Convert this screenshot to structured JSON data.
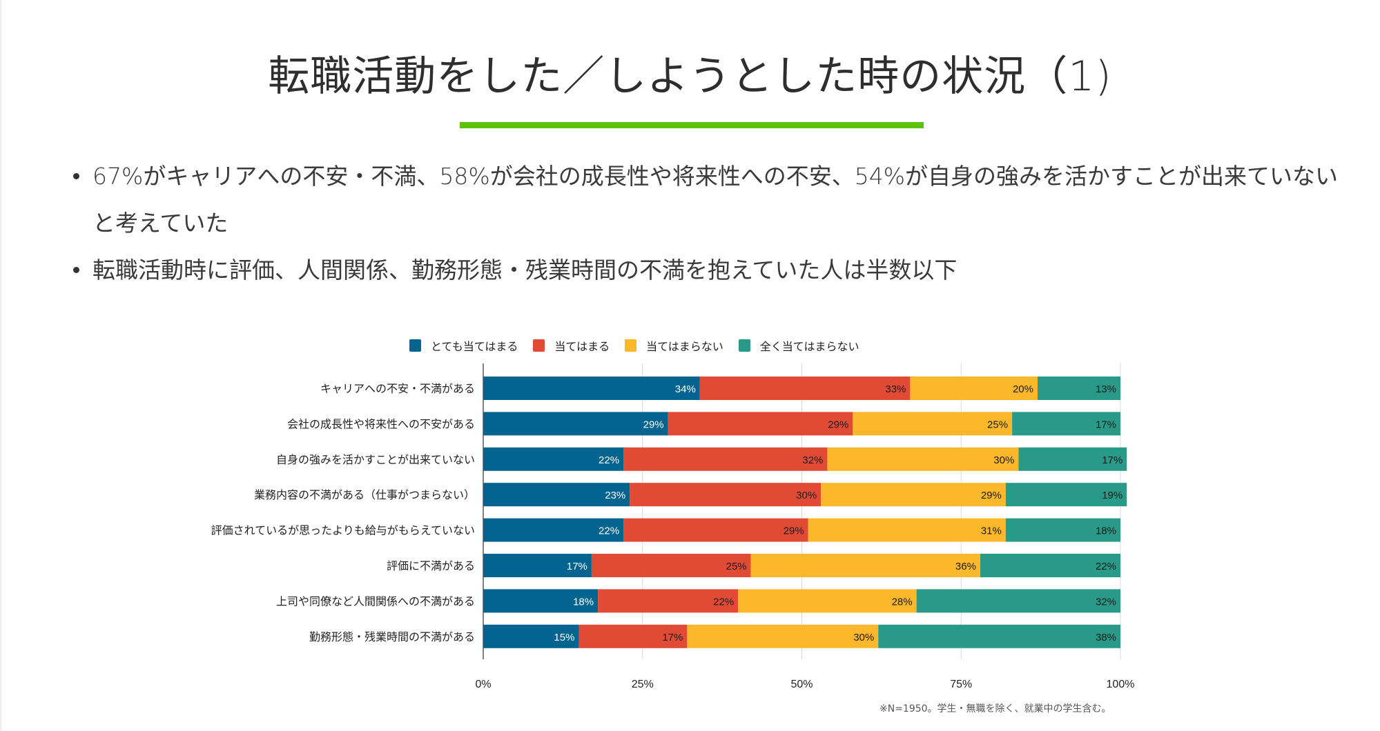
{
  "slide": {
    "title": "転職活動をした／しようとした時の状況（1)",
    "accent_color": "#5bc40a",
    "bullets": [
      "67%がキャリアへの不安・不満、58%が会社の成長性や将来性への不安、54%が自身の強みを活かすことが出来ていないと考えていた",
      "転職活動時に評価、人間関係、勤務形態・残業時間の不満を抱えていた人は半数以下"
    ],
    "footnote": "※N=1950。学生・無職を除く、就業中の学生含む。"
  },
  "chart_data": {
    "type": "bar",
    "orientation": "horizontal",
    "stacked": "percent",
    "title": "",
    "xlabel": "",
    "ylabel": "",
    "xlim": [
      0,
      100
    ],
    "grid": true,
    "legend_position": "top",
    "x_ticks": [
      "0%",
      "25%",
      "50%",
      "75%",
      "100%"
    ],
    "x_tick_values": [
      0,
      25,
      50,
      75,
      100
    ],
    "categories": [
      "キャリアへの不安・不満がある",
      "会社の成長性や将来性への不安がある",
      "自身の強みを活かすことが出来ていない",
      "業務内容の不満がある（仕事がつまらない）",
      "評価されているが思ったよりも給与がもらえていない",
      "評価に不満がある",
      "上司や同僚など人間関係への不満がある",
      "勤務形態・残業時間の不満がある"
    ],
    "series": [
      {
        "name": "とても当てはまる",
        "color": "#03648f",
        "label_color": "#ffffff",
        "values": [
          34,
          29,
          22,
          23,
          22,
          17,
          18,
          15
        ]
      },
      {
        "name": "当てはまる",
        "color": "#e14b36",
        "label_color": "#1a1a1a",
        "values": [
          33,
          29,
          32,
          30,
          29,
          25,
          22,
          17
        ]
      },
      {
        "name": "当てはまらない",
        "color": "#fbb82b",
        "label_color": "#1a1a1a",
        "values": [
          20,
          25,
          30,
          29,
          31,
          36,
          28,
          30
        ]
      },
      {
        "name": "全く当てはまらない",
        "color": "#2a9a88",
        "label_color": "#1a1a1a",
        "values": [
          13,
          17,
          17,
          19,
          18,
          22,
          32,
          38
        ]
      }
    ]
  }
}
